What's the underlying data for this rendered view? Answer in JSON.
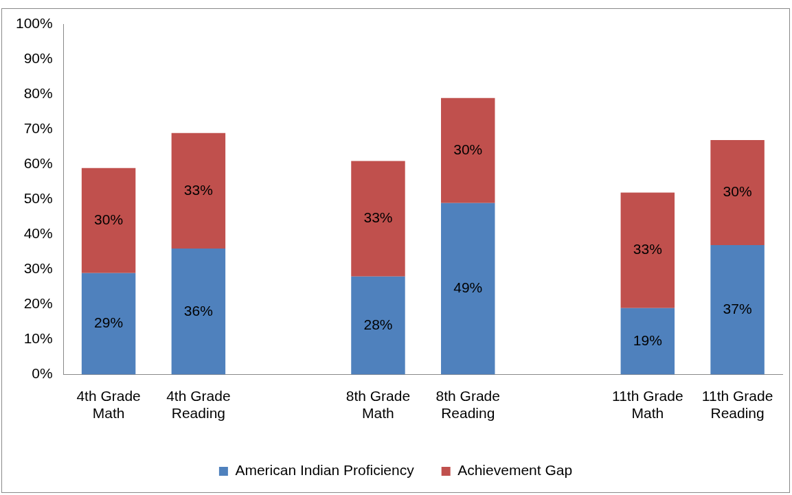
{
  "chart_data": {
    "type": "bar",
    "stacked": true,
    "categories": [
      "4th Grade Math",
      "4th Grade Reading",
      null,
      "8th Grade Math",
      "8th Grade Reading",
      null,
      "11th Grade Math",
      "11th Grade Reading"
    ],
    "series": [
      {
        "name": "American Indian Proficiency",
        "color": "#4f81bd",
        "values": [
          29,
          36,
          null,
          28,
          49,
          null,
          19,
          37
        ],
        "value_labels": [
          "29%",
          "36%",
          null,
          "28%",
          "49%",
          null,
          "19%",
          "37%"
        ]
      },
      {
        "name": "Achievement Gap",
        "color": "#c0504d",
        "values": [
          30,
          33,
          null,
          33,
          30,
          null,
          33,
          30
        ],
        "value_labels": [
          "30%",
          "33%",
          null,
          "33%",
          "30%",
          null,
          "33%",
          "30%"
        ]
      }
    ],
    "ylim": [
      0,
      100
    ],
    "yticks": [
      {
        "value": 0,
        "label": "0%"
      },
      {
        "value": 10,
        "label": "10%"
      },
      {
        "value": 20,
        "label": "20%"
      },
      {
        "value": 30,
        "label": "30%"
      },
      {
        "value": 40,
        "label": "40%"
      },
      {
        "value": 50,
        "label": "50%"
      },
      {
        "value": 60,
        "label": "60%"
      },
      {
        "value": 70,
        "label": "70%"
      },
      {
        "value": 80,
        "label": "80%"
      },
      {
        "value": 90,
        "label": "90%"
      },
      {
        "value": 100,
        "label": "100%"
      }
    ],
    "grid": false,
    "legend": "bottom"
  }
}
